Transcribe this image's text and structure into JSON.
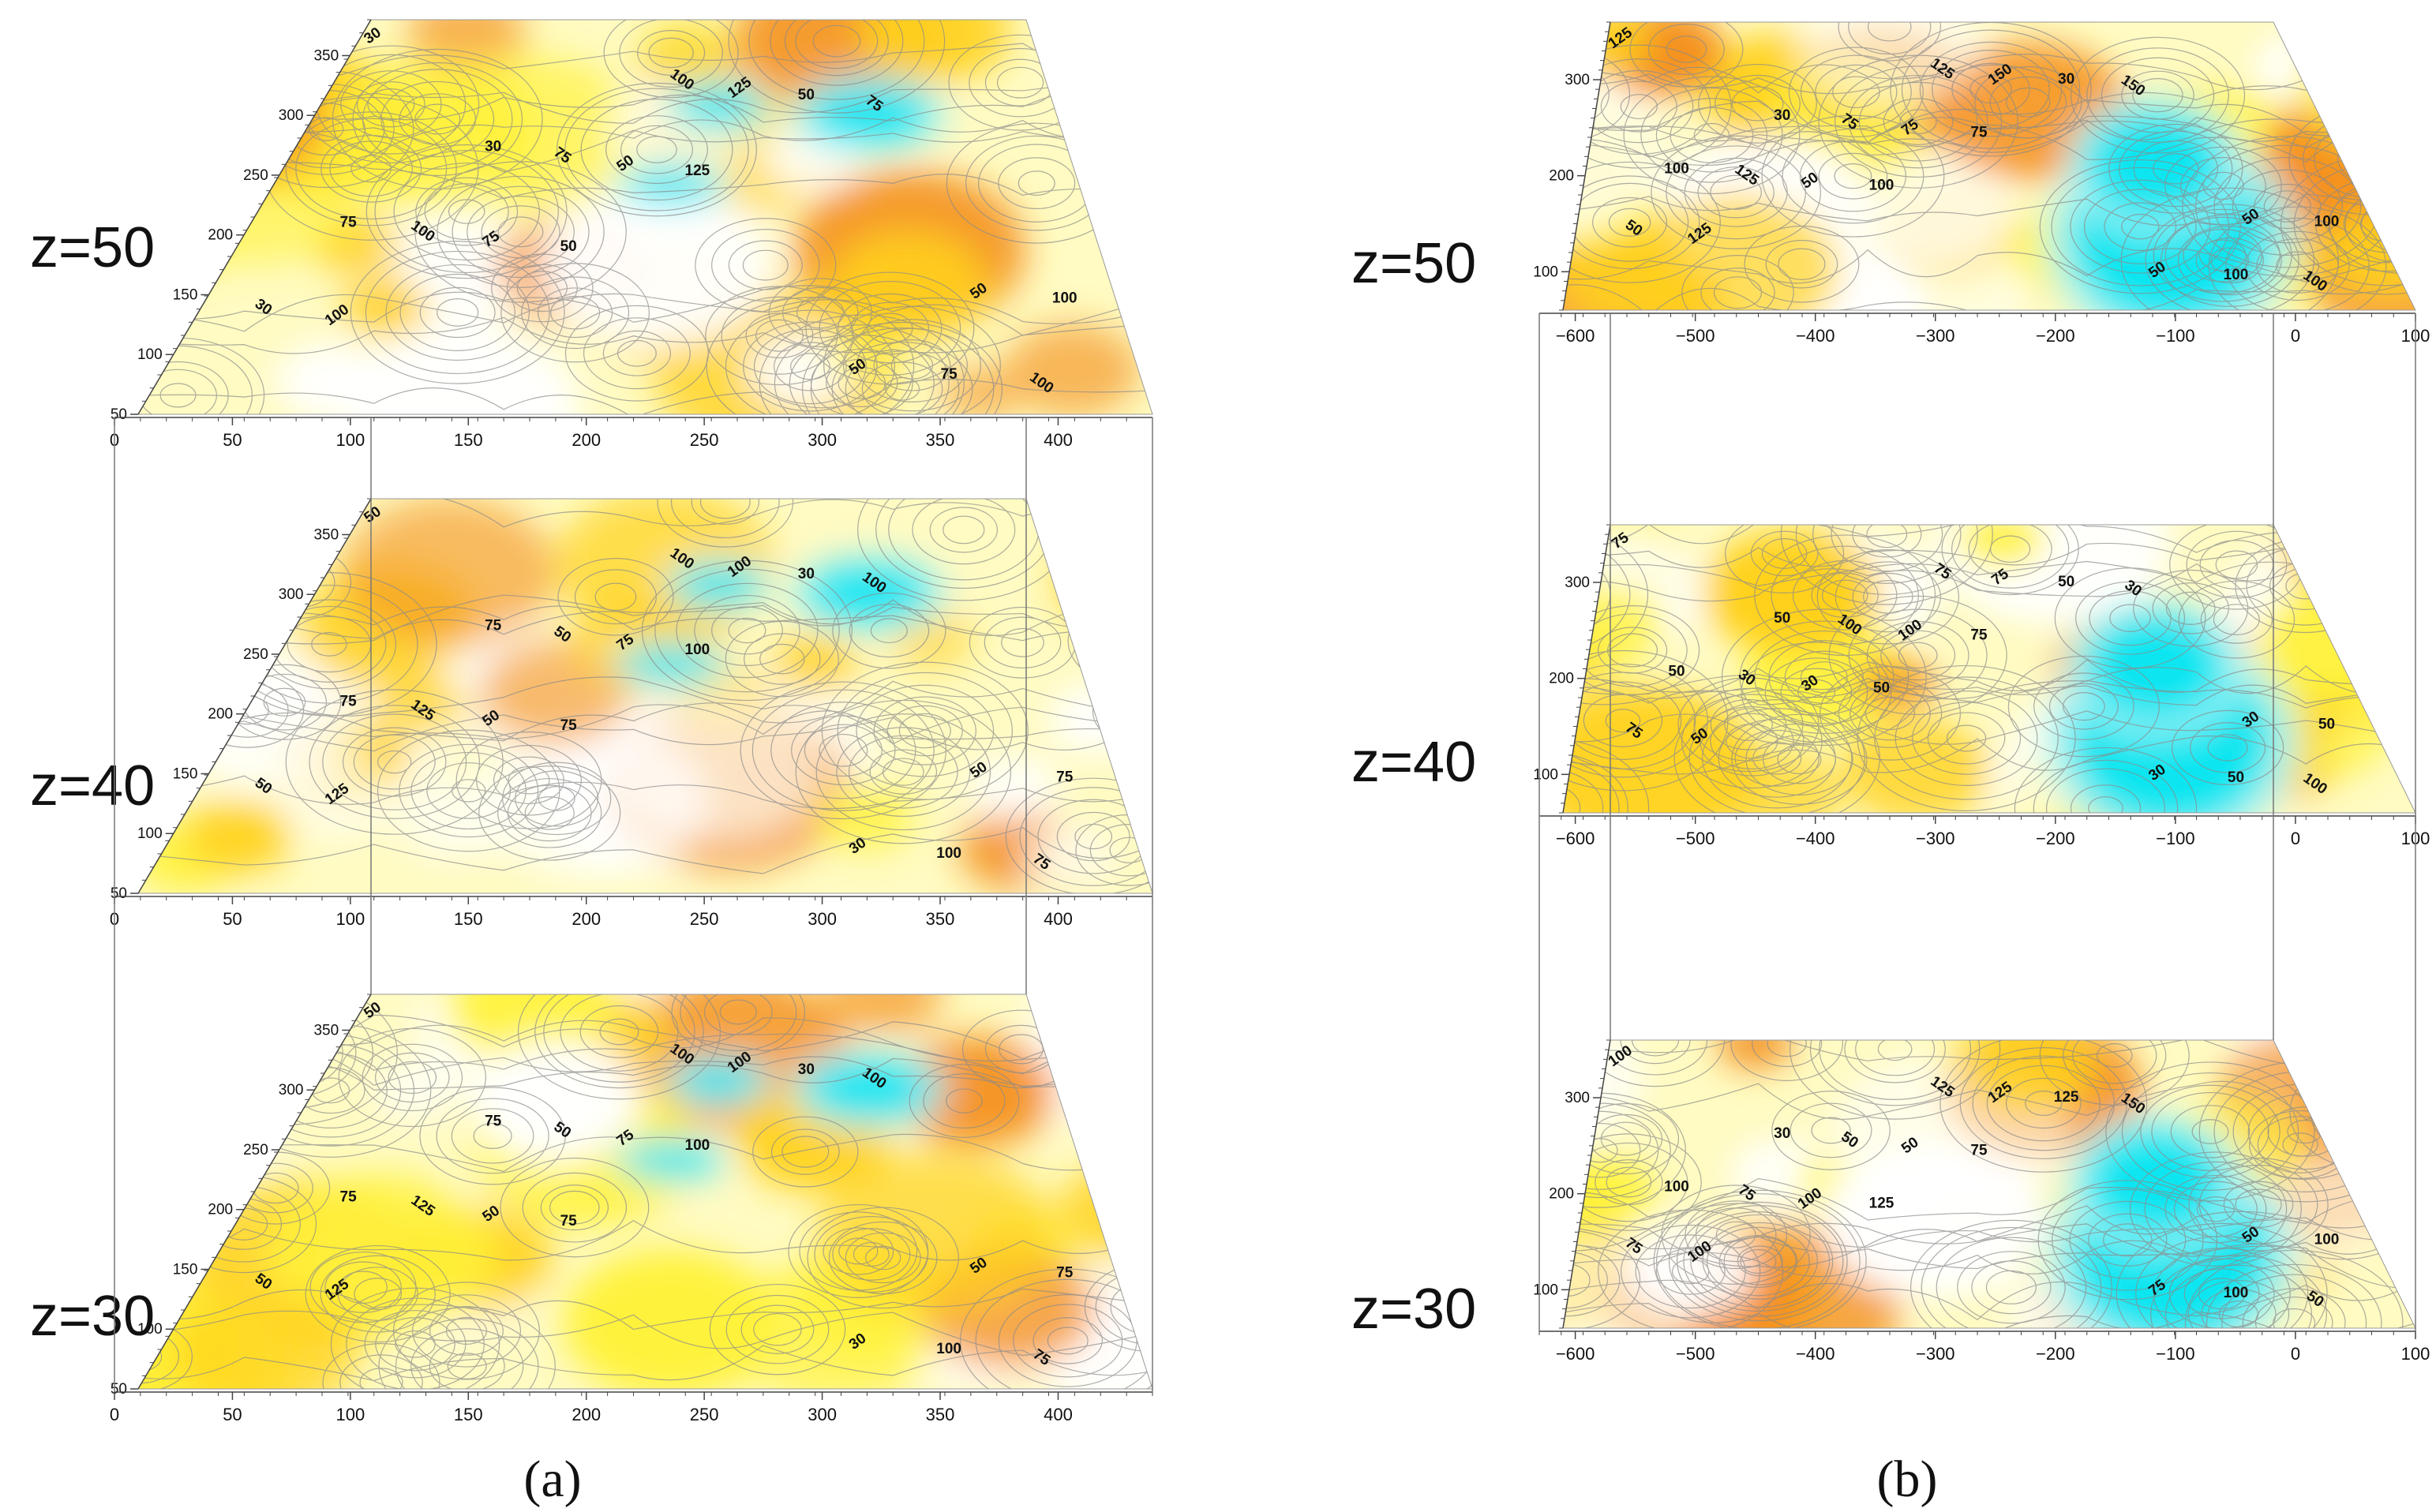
{
  "figure": {
    "caption_a": "(a)",
    "caption_b": "(b)"
  },
  "chart_data": [
    {
      "type": "heatmap",
      "panel": "a",
      "title": "",
      "xlabel": "",
      "ylabel": "",
      "x_ticks": [
        "0",
        "50",
        "100",
        "150",
        "200",
        "250",
        "300",
        "350",
        "400"
      ],
      "y_ticks": [
        "50",
        "100",
        "150",
        "200",
        "250",
        "300",
        "350"
      ],
      "xlim": [
        0,
        440
      ],
      "ylim": [
        50,
        380
      ],
      "layers": [
        {
          "z_label": "z=50",
          "contour_labels": [
            "30",
            "50",
            "75",
            "100",
            "125",
            "100",
            "75",
            "50",
            "30",
            "50",
            "75",
            "100",
            "125",
            "100",
            "75",
            "50",
            "75",
            "100",
            "50",
            "30"
          ]
        },
        {
          "z_label": "z=40",
          "contour_labels": [
            "50",
            "75",
            "100",
            "125",
            "100",
            "75",
            "50",
            "30",
            "50",
            "75",
            "100",
            "125",
            "100",
            "75",
            "50",
            "30",
            "75",
            "100",
            "50",
            "75"
          ]
        },
        {
          "z_label": "z=30",
          "contour_labels": [
            "50",
            "75",
            "100",
            "125",
            "100",
            "75",
            "50",
            "30",
            "50",
            "75",
            "100",
            "125",
            "100",
            "75",
            "50",
            "30",
            "75",
            "100",
            "50",
            "75"
          ]
        }
      ],
      "colorscale": [
        "#00e5f0",
        "#b8f4f4",
        "#ffffff",
        "#fffbc2",
        "#fff23a",
        "#ffd21e",
        "#f4901e"
      ]
    },
    {
      "type": "heatmap",
      "panel": "b",
      "title": "",
      "xlabel": "",
      "ylabel": "",
      "x_ticks": [
        "−600",
        "−500",
        "−400",
        "−300",
        "−200",
        "−100",
        "0",
        "100"
      ],
      "y_ticks": [
        "100",
        "200",
        "300"
      ],
      "xlim": [
        -630,
        100
      ],
      "ylim": [
        60,
        360
      ],
      "layers": [
        {
          "z_label": "z=50",
          "contour_labels": [
            "125",
            "100",
            "150",
            "125",
            "75",
            "100",
            "50",
            "30",
            "50",
            "75",
            "100",
            "125",
            "150",
            "100",
            "75",
            "50",
            "100",
            "125",
            "50",
            "30"
          ]
        },
        {
          "z_label": "z=40",
          "contour_labels": [
            "75",
            "50",
            "30",
            "50",
            "75",
            "100",
            "30",
            "50",
            "75",
            "100",
            "50",
            "30",
            "75",
            "50",
            "100",
            "30",
            "50",
            "75",
            "30",
            "50"
          ]
        },
        {
          "z_label": "z=30",
          "contour_labels": [
            "100",
            "125",
            "150",
            "100",
            "75",
            "50",
            "100",
            "125",
            "75",
            "50",
            "100",
            "75",
            "125",
            "100",
            "50",
            "75",
            "100",
            "125",
            "50",
            "30"
          ]
        }
      ],
      "colorscale": [
        "#00e5f0",
        "#b8f4f4",
        "#ffffff",
        "#fffbc2",
        "#fff23a",
        "#ffd21e",
        "#f4901e"
      ]
    }
  ]
}
